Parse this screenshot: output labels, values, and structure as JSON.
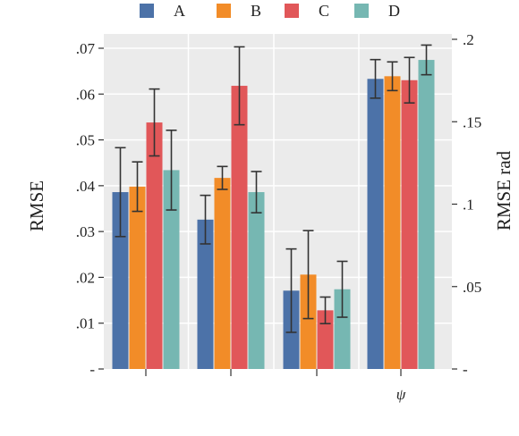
{
  "chart_data": {
    "type": "bar",
    "categories": [
      "",
      "",
      "",
      "ψ"
    ],
    "series": [
      {
        "name": "A",
        "color": "#4c72a8",
        "values": [
          0.0386,
          0.0326,
          0.0171,
          0.176
        ],
        "errors": [
          0.0097,
          0.0053,
          0.0091,
          0.0117
        ]
      },
      {
        "name": "B",
        "color": "#f28c28",
        "values": [
          0.0398,
          0.0417,
          0.0206,
          0.1776
        ],
        "errors": [
          0.0054,
          0.0025,
          0.0096,
          0.0087
        ]
      },
      {
        "name": "C",
        "color": "#e15759",
        "values": [
          0.0538,
          0.0618,
          0.0128,
          0.1752
        ],
        "errors": [
          0.0073,
          0.0085,
          0.0029,
          0.0138
        ]
      },
      {
        "name": "D",
        "color": "#76b7b2",
        "values": [
          0.0434,
          0.0386,
          0.0174,
          0.1875
        ],
        "errors": [
          0.0087,
          0.0045,
          0.0061,
          0.009
        ]
      }
    ],
    "axis_assignment": [
      "left",
      "left",
      "left",
      "right"
    ],
    "left_axis": {
      "label": "RMSE",
      "ylim": [
        0,
        0.07
      ],
      "ticks": [
        0,
        0.01,
        0.02,
        0.03,
        0.04,
        0.05,
        0.06,
        0.07
      ],
      "tick_labels": [
        "-",
        ".01",
        ".02",
        ".03",
        ".04",
        ".05",
        ".06",
        ".07"
      ]
    },
    "right_axis": {
      "label": "RMSE  rad",
      "ylim": [
        0,
        0.2
      ],
      "ticks": [
        0,
        0.05,
        0.1,
        0.15,
        0.2
      ],
      "tick_labels": [
        "-",
        ".05",
        ".1",
        ".15",
        ".2"
      ]
    },
    "grid": true,
    "legend_placement": "top-center",
    "background_color": "#ebebeb",
    "grid_color": "#ffffff",
    "error_bar_color": "#333333"
  }
}
